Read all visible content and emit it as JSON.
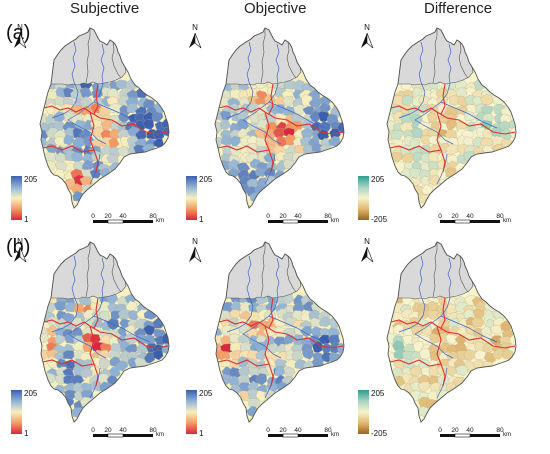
{
  "columns": [
    "Subjective",
    "Objective",
    "Difference"
  ],
  "rows": [
    "(a)",
    "(b)"
  ],
  "north_label": "N",
  "legend": {
    "main": {
      "max": "205",
      "min": "1",
      "colors": [
        "#3b5fae",
        "#8fb2d6",
        "#f6f1c2",
        "#f49a62",
        "#d7263d"
      ]
    },
    "difference": {
      "max": "205",
      "min": "-205",
      "colors": [
        "#2e9c90",
        "#a7d3c2",
        "#f7f3cc",
        "#e0b873",
        "#9a6420"
      ]
    }
  },
  "scale_bar": {
    "ticks": [
      "0",
      "20",
      "40",
      "80"
    ],
    "unit": "km"
  },
  "map_colors": {
    "upstream": "#d9d9d9",
    "river": "#3d67c9",
    "boundary": "#e03030",
    "border": "#555555"
  }
}
